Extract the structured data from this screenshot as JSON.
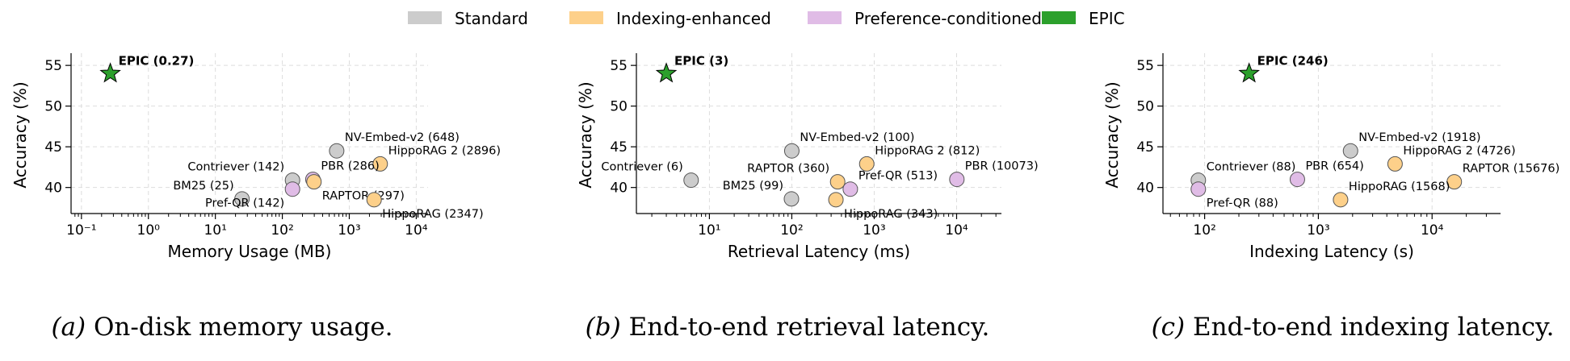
{
  "legend": [
    {
      "name": "Standard",
      "color": "#cccccc"
    },
    {
      "name": "Indexing-enhanced",
      "color": "#fdd08a"
    },
    {
      "name": "Preference-conditioned",
      "color": "#e0bce6"
    },
    {
      "name": "EPIC",
      "color": "#2ca02c"
    }
  ],
  "captions": [
    {
      "tag": "(a)",
      "text": " On-disk memory usage."
    },
    {
      "tag": "(b)",
      "text": " End-to-end retrieval latency."
    },
    {
      "tag": "(c)",
      "text": " End-to-end indexing latency."
    }
  ],
  "chart_data": [
    {
      "type": "scatter",
      "xscale": "log",
      "xlabel": "Memory Usage (MB)",
      "ylabel": "Accuracy (%)",
      "xlim": [
        0.07,
        15000
      ],
      "ylim": [
        36.8,
        56.5
      ],
      "xticks": [
        {
          "value": 0.1,
          "label": "10⁻¹"
        },
        {
          "value": 1,
          "label": "10⁰"
        },
        {
          "value": 10,
          "label": "10¹"
        },
        {
          "value": 100,
          "label": "10²"
        },
        {
          "value": 1000,
          "label": "10³"
        },
        {
          "value": 10000,
          "label": "10⁴"
        }
      ],
      "yticks": [
        40,
        45,
        50,
        55
      ],
      "grid": true,
      "points": [
        {
          "label": "EPIC (0.27)",
          "x": 0.27,
          "y": 54.0,
          "group": "EPIC",
          "label_pos": "upper-right"
        },
        {
          "label": "NV-Embed-v2 (648)",
          "x": 648,
          "y": 44.5,
          "group": "Standard",
          "label_pos": "upper-right"
        },
        {
          "label": "HippoRAG 2 (2896)",
          "x": 2896,
          "y": 42.9,
          "group": "Indexing-enhanced",
          "label_pos": "upper-right"
        },
        {
          "label": "Contriever (142)",
          "x": 142,
          "y": 40.9,
          "group": "Standard",
          "label_pos": "upper-left"
        },
        {
          "label": "PBR (286)",
          "x": 286,
          "y": 41.0,
          "group": "Preference-conditioned",
          "label_pos": "upper-right"
        },
        {
          "label": "RAPTOR (297)",
          "x": 297,
          "y": 40.7,
          "group": "Indexing-enhanced",
          "label_pos": "lower-right"
        },
        {
          "label": "BM25 (25)",
          "x": 25,
          "y": 38.6,
          "group": "Standard",
          "label_pos": "upper-left"
        },
        {
          "label": "Pref-QR (142)",
          "x": 142,
          "y": 39.8,
          "group": "Preference-conditioned",
          "label_pos": "lower-left"
        },
        {
          "label": "HippoRAG (2347)",
          "x": 2347,
          "y": 38.5,
          "group": "Indexing-enhanced",
          "label_pos": "lower-right"
        }
      ]
    },
    {
      "type": "scatter",
      "xscale": "log",
      "xlabel": "Retrieval Latency (ms)",
      "ylabel": "Accuracy (%)",
      "xlim": [
        1.3,
        35000
      ],
      "ylim": [
        36.8,
        56.5
      ],
      "xticks": [
        {
          "value": 10,
          "label": "10¹"
        },
        {
          "value": 100,
          "label": "10²"
        },
        {
          "value": 1000,
          "label": "10³"
        },
        {
          "value": 10000,
          "label": "10⁴"
        }
      ],
      "yticks": [
        40,
        45,
        50,
        55
      ],
      "grid": true,
      "points": [
        {
          "label": "EPIC (3)",
          "x": 3,
          "y": 54.0,
          "group": "EPIC",
          "label_pos": "upper-right"
        },
        {
          "label": "NV-Embed-v2 (100)",
          "x": 100,
          "y": 44.5,
          "group": "Standard",
          "label_pos": "upper-right"
        },
        {
          "label": "HippoRAG 2 (812)",
          "x": 812,
          "y": 42.9,
          "group": "Indexing-enhanced",
          "label_pos": "upper-right"
        },
        {
          "label": "Contriever (6)",
          "x": 6,
          "y": 40.9,
          "group": "Standard",
          "label_pos": "upper-left"
        },
        {
          "label": "RAPTOR (360)",
          "x": 360,
          "y": 40.7,
          "group": "Indexing-enhanced",
          "label_pos": "upper-left"
        },
        {
          "label": "Pref-QR (513)",
          "x": 513,
          "y": 39.8,
          "group": "Preference-conditioned",
          "label_pos": "upper-right"
        },
        {
          "label": "PBR (10073)",
          "x": 10073,
          "y": 41.0,
          "group": "Preference-conditioned",
          "label_pos": "upper-right"
        },
        {
          "label": "BM25 (99)",
          "x": 99,
          "y": 38.6,
          "group": "Standard",
          "label_pos": "upper-left"
        },
        {
          "label": "HippoRAG (343)",
          "x": 343,
          "y": 38.5,
          "group": "Indexing-enhanced",
          "label_pos": "lower-right"
        }
      ]
    },
    {
      "type": "scatter",
      "xscale": "log",
      "xlabel": "Indexing Latency (s)",
      "ylabel": "Accuracy (%)",
      "xlim": [
        43,
        40000
      ],
      "ylim": [
        36.8,
        56.5
      ],
      "xticks": [
        {
          "value": 100,
          "label": "10²"
        },
        {
          "value": 1000,
          "label": "10³"
        },
        {
          "value": 10000,
          "label": "10⁴"
        }
      ],
      "yticks": [
        40,
        45,
        50,
        55
      ],
      "grid": true,
      "points": [
        {
          "label": "EPIC (246)",
          "x": 246,
          "y": 54.0,
          "group": "EPIC",
          "label_pos": "upper-right"
        },
        {
          "label": "NV-Embed-v2 (1918)",
          "x": 1918,
          "y": 44.5,
          "group": "Standard",
          "label_pos": "upper-right"
        },
        {
          "label": "HippoRAG 2 (4726)",
          "x": 4726,
          "y": 42.9,
          "group": "Indexing-enhanced",
          "label_pos": "upper-right"
        },
        {
          "label": "RAPTOR (15676)",
          "x": 15676,
          "y": 40.7,
          "group": "Indexing-enhanced",
          "label_pos": "upper-right"
        },
        {
          "label": "Contriever (88)",
          "x": 88,
          "y": 40.9,
          "group": "Standard",
          "label_pos": "upper-right"
        },
        {
          "label": "PBR (654)",
          "x": 654,
          "y": 41.0,
          "group": "Preference-conditioned",
          "label_pos": "upper-right"
        },
        {
          "label": "Pref-QR (88)",
          "x": 88,
          "y": 39.8,
          "group": "Preference-conditioned",
          "label_pos": "lower-right"
        },
        {
          "label": "HippoRAG (1568)",
          "x": 1568,
          "y": 38.5,
          "group": "Indexing-enhanced",
          "label_pos": "upper-right"
        }
      ]
    }
  ]
}
